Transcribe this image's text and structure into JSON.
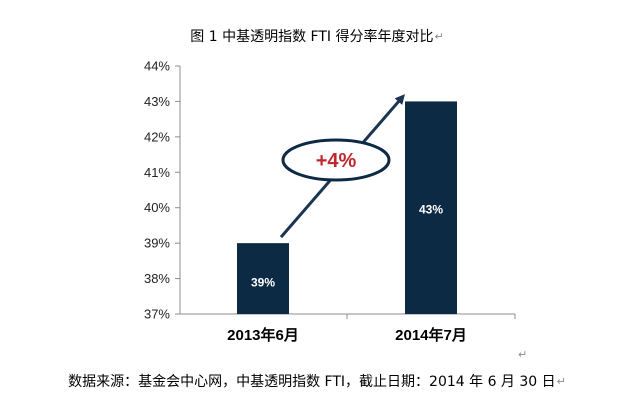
{
  "title": "图 1 中基透明指数 FTI 得分率年度对比",
  "return_mark": "↵",
  "source_text": "数据来源：基金会中心网，中基透明指数 FTI，截止日期：2014 年 6 月 30 日",
  "annotation": "+4%",
  "colors": {
    "bar": "#0d2a45",
    "axis": "#8c8c8c",
    "arrow": "#1b3550",
    "callout_outline": "#0d2a45",
    "callout_text": "#c0282d"
  },
  "chart_data": {
    "type": "bar",
    "title": "图 1 中基透明指数 FTI 得分率年度对比",
    "categories": [
      "2013年6月",
      "2014年7月"
    ],
    "values": [
      39,
      43
    ],
    "value_labels": [
      "39%",
      "43%"
    ],
    "ylim": [
      37,
      44
    ],
    "yticks": [
      37,
      38,
      39,
      40,
      41,
      42,
      43,
      44
    ],
    "ytick_labels": [
      "37%",
      "38%",
      "39%",
      "40%",
      "41%",
      "42%",
      "43%",
      "44%"
    ],
    "xlabel": "",
    "ylabel": "",
    "grid": false,
    "legend": "none",
    "annotation": "+4%"
  }
}
